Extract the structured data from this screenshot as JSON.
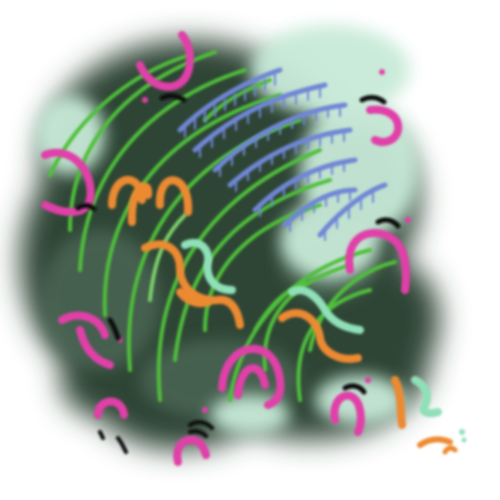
{
  "artwork": {
    "background": "#ffffff",
    "palette": {
      "smoke_dark": "#2e4536",
      "smoke_mid": "#4f6a58",
      "mist": "#c8ead8",
      "green": "#4fbf3a",
      "green_light": "#7bd06a",
      "blue": "#6f86d6",
      "magenta": "#e040a8",
      "orange": "#ec8a32",
      "mint": "#8fe0b8",
      "black": "#111111"
    },
    "motifs": [
      "smoke-cloud",
      "green-arcs",
      "blue-comb-arcs",
      "magenta-horseshoes",
      "orange-squiggles",
      "mint-squiggles",
      "black-dashes"
    ]
  }
}
